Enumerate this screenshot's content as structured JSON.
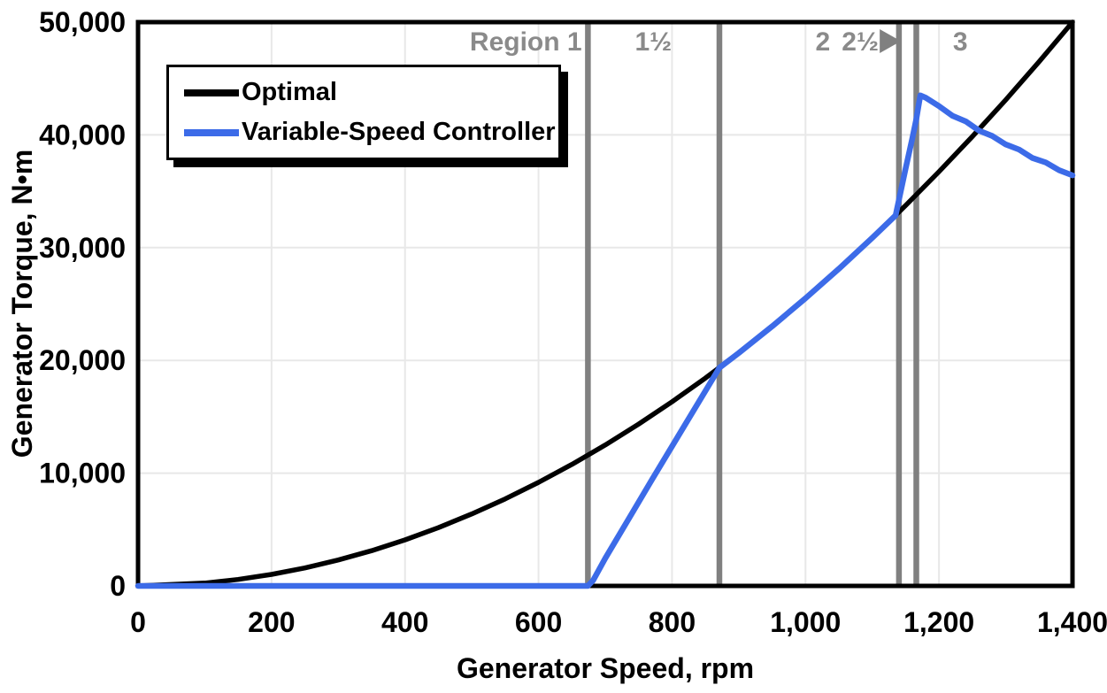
{
  "chart_data": {
    "type": "line",
    "title": "",
    "xlabel": "Generator Speed, rpm",
    "ylabel": "Generator Torque, N•m",
    "xlim": [
      0,
      1400
    ],
    "ylim": [
      0,
      50000
    ],
    "grid": true,
    "grid_color": "#E8E8E8",
    "region_line_color": "#808080",
    "region_label_color": "#8A8A8A",
    "x_ticks": [
      {
        "value": 0,
        "label": "0"
      },
      {
        "value": 200,
        "label": "200"
      },
      {
        "value": 400,
        "label": "400"
      },
      {
        "value": 600,
        "label": "600"
      },
      {
        "value": 800,
        "label": "800"
      },
      {
        "value": 1000,
        "label": "1,000"
      },
      {
        "value": 1200,
        "label": "1,200"
      },
      {
        "value": 1400,
        "label": "1,400"
      }
    ],
    "y_ticks": [
      {
        "value": 0,
        "label": "0"
      },
      {
        "value": 10000,
        "label": "10,000"
      },
      {
        "value": 20000,
        "label": "20,000"
      },
      {
        "value": 30000,
        "label": "30,000"
      },
      {
        "value": 40000,
        "label": "40,000"
      },
      {
        "value": 50000,
        "label": "50,000"
      }
    ],
    "series": [
      {
        "name": "Optimal",
        "color": "#000000",
        "width": 5.5,
        "points": [
          [
            0,
            0
          ],
          [
            100,
            255
          ],
          [
            150,
            574
          ],
          [
            200,
            1020
          ],
          [
            250,
            1594
          ],
          [
            300,
            2296
          ],
          [
            350,
            3125
          ],
          [
            400,
            4082
          ],
          [
            450,
            5166
          ],
          [
            500,
            6378
          ],
          [
            550,
            7716
          ],
          [
            600,
            9184
          ],
          [
            650,
            10778
          ],
          [
            700,
            12500
          ],
          [
            750,
            14349
          ],
          [
            800,
            16327
          ],
          [
            850,
            18431
          ],
          [
            900,
            20663
          ],
          [
            950,
            23023
          ],
          [
            1000,
            25510
          ],
          [
            1050,
            28125
          ],
          [
            1100,
            30867
          ],
          [
            1150,
            33737
          ],
          [
            1200,
            36735
          ],
          [
            1250,
            39860
          ],
          [
            1300,
            43112
          ],
          [
            1350,
            46493
          ],
          [
            1400,
            50000
          ]
        ]
      },
      {
        "name": "Variable-Speed Controller",
        "color": "#3C6BE8",
        "width": 6.5,
        "points": [
          [
            0,
            0
          ],
          [
            150,
            0
          ],
          [
            300,
            0
          ],
          [
            450,
            0
          ],
          [
            600,
            0
          ],
          [
            674,
            0
          ],
          [
            682,
            500
          ],
          [
            700,
            2450
          ],
          [
            740,
            6440
          ],
          [
            770,
            9430
          ],
          [
            820,
            14340
          ],
          [
            871,
            19352
          ],
          [
            900,
            20663
          ],
          [
            950,
            23023
          ],
          [
            1000,
            25510
          ],
          [
            1050,
            28125
          ],
          [
            1100,
            30867
          ],
          [
            1135,
            32860
          ],
          [
            1150,
            37000
          ],
          [
            1160,
            39700
          ],
          [
            1166,
            41400
          ],
          [
            1172,
            43500
          ],
          [
            1180,
            43300
          ],
          [
            1200,
            42550
          ],
          [
            1220,
            41700
          ],
          [
            1240,
            41200
          ],
          [
            1260,
            40380
          ],
          [
            1280,
            39900
          ],
          [
            1300,
            39150
          ],
          [
            1320,
            38700
          ],
          [
            1340,
            37950
          ],
          [
            1360,
            37550
          ],
          [
            1380,
            36870
          ],
          [
            1400,
            36416
          ]
        ]
      }
    ],
    "region_boundaries_rpm": [
      674,
      871,
      1140,
      1166
    ],
    "region_labels": [
      {
        "text": "Region 1",
        "rpm": 665,
        "anchor": "end"
      },
      {
        "text": "1½",
        "rpm": 772,
        "anchor": "middle"
      },
      {
        "text": "2",
        "rpm": 1026,
        "anchor": "middle"
      },
      {
        "text": "2½",
        "rpm": 1082,
        "anchor": "middle"
      },
      {
        "text": "3",
        "rpm": 1232,
        "anchor": "middle"
      }
    ],
    "region_arrow_rpm": 1143,
    "legend_position": "upper-left"
  },
  "legend": {
    "items": [
      {
        "label": "Optimal",
        "color": "#000000"
      },
      {
        "label": "Variable-Speed Controller",
        "color": "#3C6BE8"
      }
    ]
  }
}
